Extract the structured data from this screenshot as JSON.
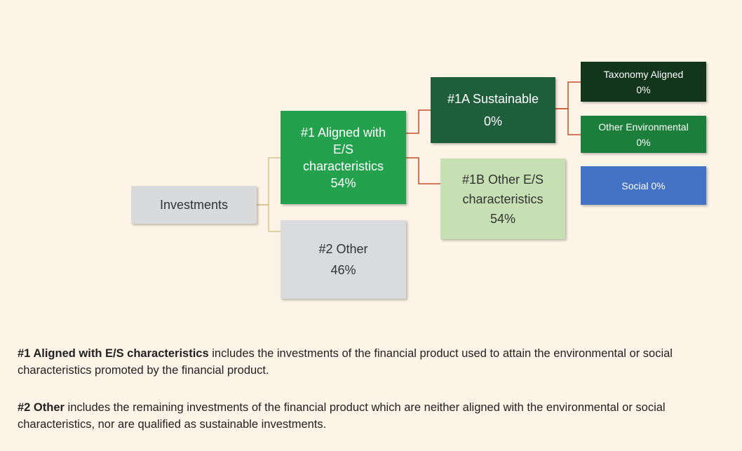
{
  "nodes": [
    {
      "lines": [
        "Investments"
      ]
    },
    {
      "lines": [
        "#1 Aligned with",
        "E/S",
        "characteristics",
        "54%"
      ]
    },
    {
      "lines": [
        "#2 Other",
        "46%"
      ]
    },
    {
      "lines": [
        "#1A Sustainable",
        "0%"
      ]
    },
    {
      "lines": [
        "#1B Other E/S",
        "characteristics",
        "54%"
      ]
    },
    {
      "lines": [
        "Taxonomy Aligned",
        "0%"
      ]
    },
    {
      "lines": [
        "Other Environmental",
        "0%"
      ]
    },
    {
      "lines": [
        "Social 0%"
      ]
    }
  ],
  "notes": [
    {
      "bold": "#1 Aligned with E/S characteristics",
      "text": " includes the investments of the financial product used to attain the environmental or social characteristics promoted by the financial product."
    },
    {
      "bold": "#2 Other",
      "text": " includes the remaining investments of the financial product which are neither aligned with the environmental or social characteristics, nor are qualified as sustainable investments."
    }
  ]
}
